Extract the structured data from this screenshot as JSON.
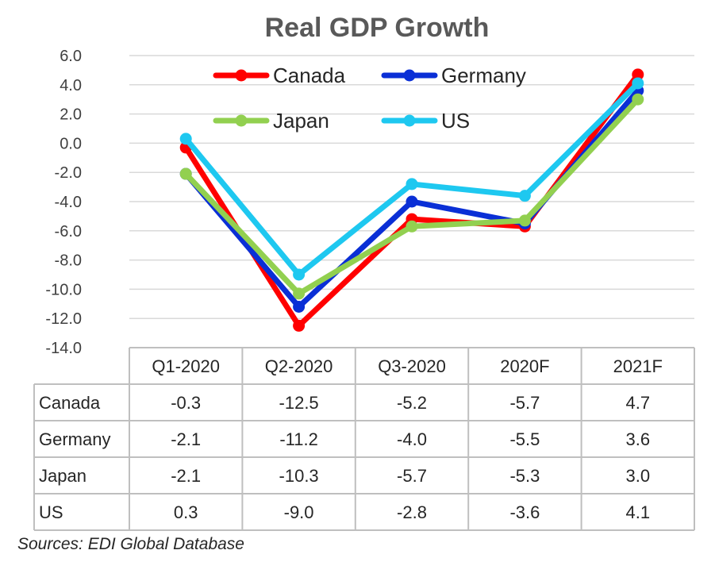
{
  "chart_data": {
    "type": "line",
    "title": "Real GDP Growth",
    "categories": [
      "Q1-2020",
      "Q2-2020",
      "Q3-2020",
      "2020F",
      "2021F"
    ],
    "ylim": [
      -14.0,
      6.0
    ],
    "yticks": [
      "6.0",
      "4.0",
      "2.0",
      "0.0",
      "-2.0",
      "-4.0",
      "-6.0",
      "-8.0",
      "-10.0",
      "-12.0",
      "-14.0"
    ],
    "grid": true,
    "legend_position": "top",
    "series": [
      {
        "name": "Canada",
        "color": "#ff0000",
        "values": [
          -0.3,
          -12.5,
          -5.2,
          -5.7,
          4.7
        ],
        "labels": [
          "-0.3",
          "-12.5",
          "-5.2",
          "-5.7",
          "4.7"
        ]
      },
      {
        "name": "Germany",
        "color": "#0a2fd6",
        "values": [
          -2.1,
          -11.2,
          -4.0,
          -5.5,
          3.6
        ],
        "labels": [
          "-2.1",
          "-11.2",
          "-4.0",
          "-5.5",
          "3.6"
        ]
      },
      {
        "name": "Japan",
        "color": "#92d050",
        "values": [
          -2.1,
          -10.3,
          -5.7,
          -5.3,
          3.0
        ],
        "labels": [
          "-2.1",
          "-10.3",
          "-5.7",
          "-5.3",
          "3.0"
        ]
      },
      {
        "name": "US",
        "color": "#1ec8f0",
        "values": [
          0.3,
          -9.0,
          -2.8,
          -3.6,
          4.1
        ],
        "labels": [
          "0.3",
          "-9.0",
          "-2.8",
          "-3.6",
          "4.1"
        ]
      }
    ]
  },
  "source_note": "Sources: EDI Global Database"
}
